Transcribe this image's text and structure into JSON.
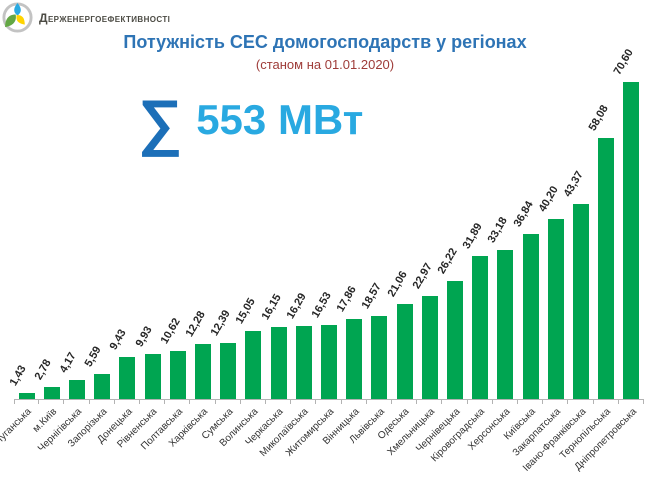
{
  "header": {
    "logo_text": "Держенергоефективності"
  },
  "title": "Потужність СЕС домогосподарств у регіонах",
  "subtitle": "(станом на 01.01.2020)",
  "total": {
    "sigma": "∑",
    "label": "553 МВт"
  },
  "colors": {
    "title_blue": "#2e74b5",
    "subtitle_red": "#9e3b38",
    "sigma_blue": "#1c6fb8",
    "total_blue": "#29a9e1",
    "bar_green": "#00a551",
    "axis_gray": "#b3b3b3",
    "text_dark": "#262626"
  },
  "chart_data": {
    "type": "bar",
    "title": "Потужність СЕС домогосподарств у регіонах",
    "subtitle": "(станом на 01.01.2020)",
    "unit": "МВт",
    "total_mw": 553,
    "categories": [
      "Луганська",
      "м.Київ",
      "Чернігівська",
      "Запорізька",
      "Донецька",
      "Рівненська",
      "Полтавська",
      "Харківська",
      "Сумська",
      "Волинська",
      "Черкаська",
      "Миколаївська",
      "Житомирська",
      "Вінницька",
      "Львівська",
      "Одеська",
      "Хмельницька",
      "Чернівецька",
      "Кіровоградська",
      "Херсонська",
      "Київська",
      "Закарпатська",
      "Івано-Франківська",
      "Тернопільська",
      "Дніпропетровська"
    ],
    "values": [
      1.43,
      2.78,
      4.17,
      5.59,
      9.43,
      9.93,
      10.62,
      12.28,
      12.39,
      15.05,
      16.15,
      16.29,
      16.53,
      17.86,
      18.57,
      21.06,
      22.97,
      26.22,
      31.89,
      33.18,
      36.84,
      40.2,
      43.37,
      58.08,
      70.6
    ],
    "value_labels": [
      "1,43",
      "2,78",
      "4,17",
      "5,59",
      "9,43",
      "9,93",
      "10,62",
      "12,28",
      "12,39",
      "15,05",
      "16,15",
      "16,29",
      "16,53",
      "17,86",
      "18,57",
      "21,06",
      "22,97",
      "26,22",
      "31,89",
      "33,18",
      "36,84",
      "40,20",
      "43,37",
      "58,08",
      "70,60"
    ],
    "xlabel": "",
    "ylabel": "",
    "ylim": [
      0,
      75
    ],
    "grid": false,
    "legend": false,
    "value_label_rotation_deg": -60,
    "category_label_rotation_deg": -45
  }
}
